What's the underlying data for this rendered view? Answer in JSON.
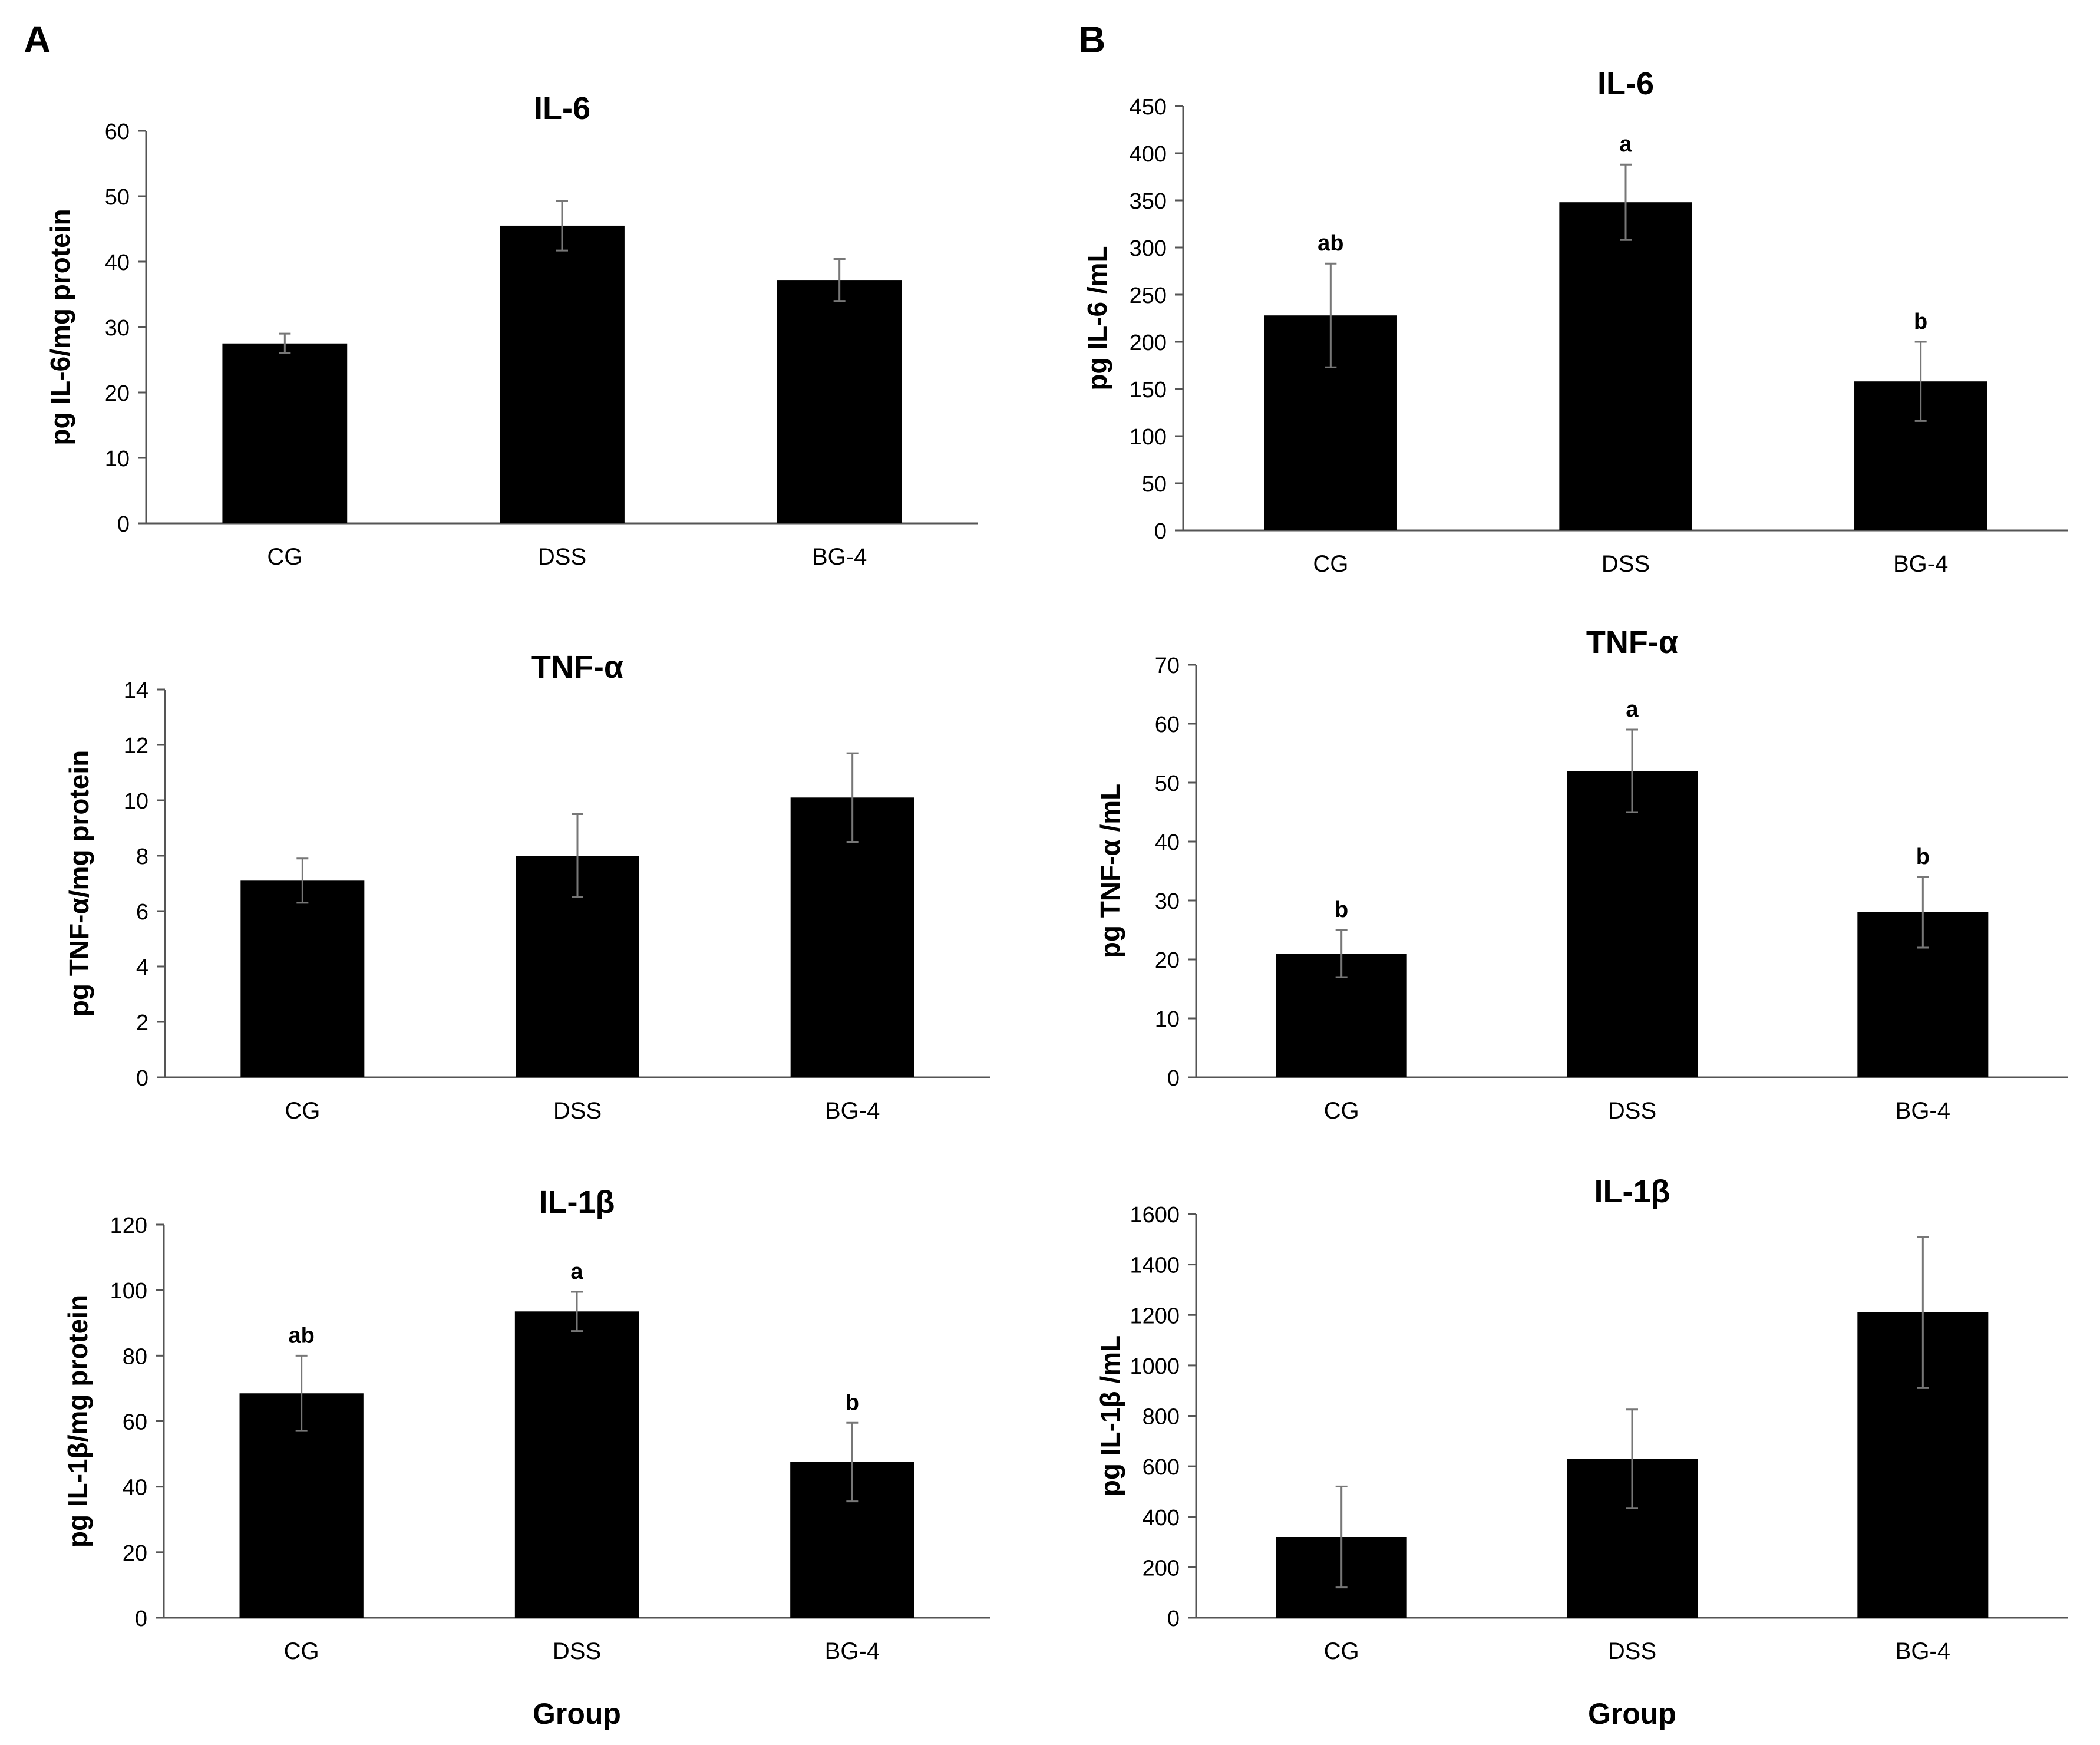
{
  "figure": {
    "panel_labels": [
      "A",
      "B"
    ]
  },
  "colors": {
    "bar": "#000000",
    "axis": "#555555",
    "background": "#ffffff"
  },
  "chart_data": [
    {
      "type": "bar",
      "panel": "A",
      "title": "IL-6",
      "categories": [
        "CG",
        "DSS",
        "BG-4"
      ],
      "values": [
        27.5,
        45.5,
        37.2
      ],
      "errors": [
        1.5,
        3.8,
        3.2
      ],
      "letters": [
        "",
        "",
        ""
      ],
      "ylabel": "pg IL-6/mg protein",
      "xlabel": "",
      "ylim": [
        0,
        60
      ],
      "yticks": [
        0,
        10,
        20,
        30,
        40,
        50,
        60
      ]
    },
    {
      "type": "bar",
      "panel": "B",
      "title": "IL-6",
      "categories": [
        "CG",
        "DSS",
        "BG-4"
      ],
      "values": [
        228,
        348,
        158
      ],
      "errors": [
        55,
        40,
        42
      ],
      "letters": [
        "ab",
        "a",
        "b"
      ],
      "ylabel": "pg IL-6 /mL",
      "xlabel": "",
      "ylim": [
        0,
        450
      ],
      "yticks": [
        0,
        50,
        100,
        150,
        200,
        250,
        300,
        350,
        400,
        450
      ]
    },
    {
      "type": "bar",
      "panel": "A",
      "title": "TNF-α",
      "categories": [
        "CG",
        "DSS",
        "BG-4"
      ],
      "values": [
        7.1,
        8.0,
        10.1
      ],
      "errors": [
        0.8,
        1.5,
        1.6
      ],
      "letters": [
        "",
        "",
        ""
      ],
      "ylabel": "pg TNF-α/mg protein",
      "xlabel": "",
      "ylim": [
        0,
        14
      ],
      "yticks": [
        0,
        2,
        4,
        6,
        8,
        10,
        12,
        14
      ]
    },
    {
      "type": "bar",
      "panel": "B",
      "title": "TNF-α",
      "categories": [
        "CG",
        "DSS",
        "BG-4"
      ],
      "values": [
        21,
        52,
        28
      ],
      "errors": [
        4,
        7,
        6
      ],
      "letters": [
        "b",
        "a",
        "b"
      ],
      "ylabel": "pg TNF-α /mL",
      "xlabel": "",
      "ylim": [
        0,
        70
      ],
      "yticks": [
        0,
        10,
        20,
        30,
        40,
        50,
        60,
        70
      ]
    },
    {
      "type": "bar",
      "panel": "A",
      "title": "IL-1β",
      "categories": [
        "CG",
        "DSS",
        "BG-4"
      ],
      "values": [
        68.5,
        93.5,
        47.5
      ],
      "errors": [
        11.5,
        6.0,
        12.0
      ],
      "letters": [
        "ab",
        "a",
        "b"
      ],
      "ylabel": "pg IL-1β/mg protein",
      "xlabel": "Group",
      "ylim": [
        0,
        120
      ],
      "yticks": [
        0,
        20,
        40,
        60,
        80,
        100,
        120
      ]
    },
    {
      "type": "bar",
      "panel": "B",
      "title": "IL-1β",
      "categories": [
        "CG",
        "DSS",
        "BG-4"
      ],
      "values": [
        320,
        630,
        1210
      ],
      "errors": [
        200,
        195,
        300
      ],
      "letters": [
        "",
        "",
        ""
      ],
      "ylabel": "pg IL-1β /mL",
      "xlabel": "Group",
      "ylim": [
        0,
        1600
      ],
      "yticks": [
        0,
        200,
        400,
        600,
        800,
        1000,
        1200,
        1400,
        1600
      ]
    }
  ]
}
